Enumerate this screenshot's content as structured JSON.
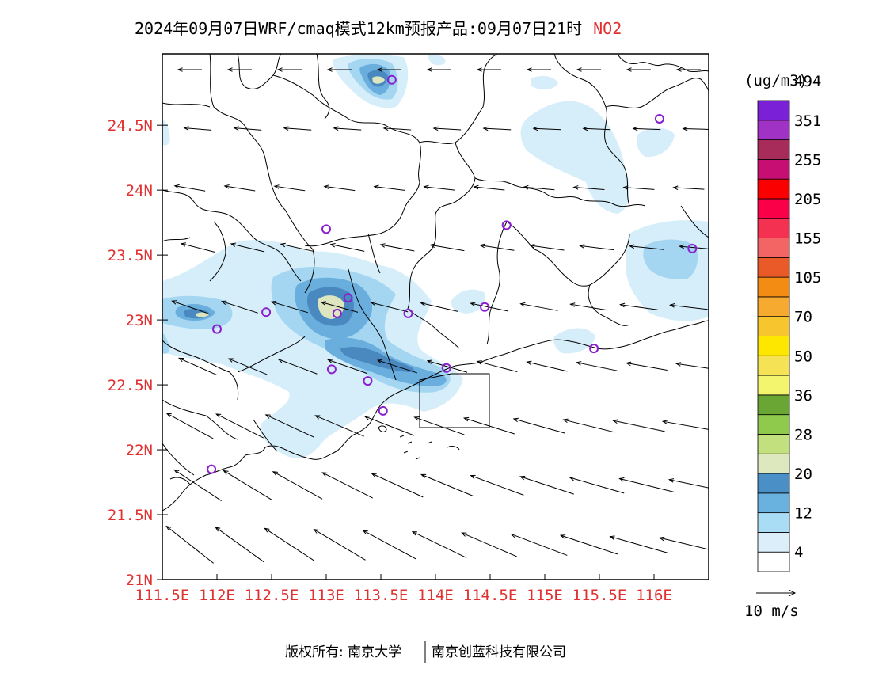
{
  "title": {
    "main": "2024年09月07日WRF/cmaq模式12km预报产品:09月07日21时",
    "species": "NO2"
  },
  "axes": {
    "lat_ticks": [
      "24.5N",
      "24N",
      "23.5N",
      "23N",
      "22.5N",
      "22N",
      "21.5N",
      "21N"
    ],
    "lat_values": [
      24.5,
      24.0,
      23.5,
      23.0,
      22.5,
      22.0,
      21.5,
      21.0
    ],
    "lon_ticks": [
      "111.5E",
      "112E",
      "112.5E",
      "113E",
      "113.5E",
      "114E",
      "114.5E",
      "115E",
      "115.5E",
      "116E"
    ],
    "lon_values": [
      111.5,
      112.0,
      112.5,
      113.0,
      113.5,
      114.0,
      114.5,
      115.0,
      115.5,
      116.0
    ],
    "lat_range": [
      21.0,
      25.05
    ],
    "lon_range": [
      111.5,
      116.5
    ]
  },
  "colorbar": {
    "unit": "(ug/m3)",
    "labels": [
      "4",
      "12",
      "20",
      "28",
      "36",
      "50",
      "70",
      "105",
      "155",
      "205",
      "255",
      "351",
      "494"
    ],
    "colors": [
      "#ffffff",
      "#dbeefa",
      "#a9dcf5",
      "#69b2e0",
      "#4a90c6",
      "#dde8bf",
      "#c3e07e",
      "#8fca4c",
      "#6aa633",
      "#f3f56f",
      "#f5e355",
      "#fde700",
      "#f7c52e",
      "#f6aa2f",
      "#f38c12",
      "#ea5a28",
      "#f36464",
      "#f53151",
      "#fa0048",
      "#fb0000",
      "#c70f73",
      "#a82c5a",
      "#a032c6",
      "#7a21d8"
    ]
  },
  "wind_legend": {
    "label": "10 m/s"
  },
  "map": {
    "contour_colors": {
      "c4": "#d6eefa",
      "c12": "#a4d6f2",
      "c16": "#6aaede",
      "c20": "#4a88c0",
      "c24": "#dde6bf"
    },
    "stations": [
      {
        "lon": 113.6,
        "lat": 24.85
      },
      {
        "lon": 116.05,
        "lat": 24.55
      },
      {
        "lon": 113.0,
        "lat": 23.7
      },
      {
        "lon": 114.65,
        "lat": 23.73
      },
      {
        "lon": 116.35,
        "lat": 23.55
      },
      {
        "lon": 113.2,
        "lat": 23.17
      },
      {
        "lon": 113.1,
        "lat": 23.05
      },
      {
        "lon": 112.45,
        "lat": 23.06
      },
      {
        "lon": 112.0,
        "lat": 22.93
      },
      {
        "lon": 113.75,
        "lat": 23.05
      },
      {
        "lon": 114.45,
        "lat": 23.1
      },
      {
        "lon": 115.45,
        "lat": 22.78
      },
      {
        "lon": 113.05,
        "lat": 22.62
      },
      {
        "lon": 113.38,
        "lat": 22.53
      },
      {
        "lon": 114.1,
        "lat": 22.63
      },
      {
        "lon": 113.52,
        "lat": 22.3
      },
      {
        "lon": 111.95,
        "lat": 21.85
      }
    ]
  },
  "footer": {
    "left": "版权所有: 南京大学",
    "right": "南京创蓝科技有限公司"
  }
}
